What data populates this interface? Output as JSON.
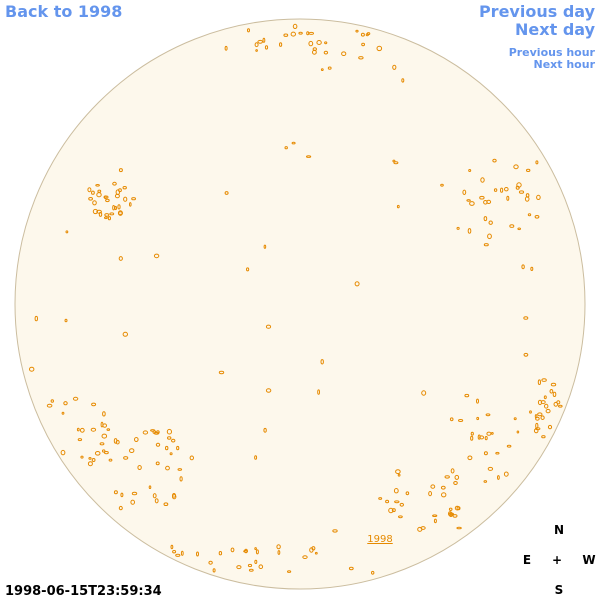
{
  "nav": {
    "back": "Back to 1998",
    "previous_day": "Previous day",
    "next_day": "Next day",
    "previous_hour": "Previous hour",
    "next_hour": "Next hour"
  },
  "disk_label": "1998",
  "timestamp": "1998-06-15T23:59:34",
  "compass": {
    "north": "N",
    "east": "E",
    "center": "+",
    "west": "W",
    "south": "S"
  }
}
